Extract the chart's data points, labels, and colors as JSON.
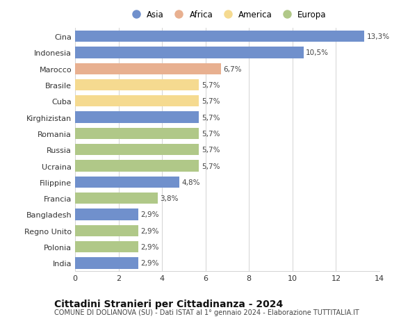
{
  "countries": [
    "Cina",
    "Indonesia",
    "Marocco",
    "Brasile",
    "Cuba",
    "Kirghizistan",
    "Romania",
    "Russia",
    "Ucraina",
    "Filippine",
    "Francia",
    "Bangladesh",
    "Regno Unito",
    "Polonia",
    "India"
  ],
  "values": [
    13.3,
    10.5,
    6.7,
    5.7,
    5.7,
    5.7,
    5.7,
    5.7,
    5.7,
    4.8,
    3.8,
    2.9,
    2.9,
    2.9,
    2.9
  ],
  "labels": [
    "13,3%",
    "10,5%",
    "6,7%",
    "5,7%",
    "5,7%",
    "5,7%",
    "5,7%",
    "5,7%",
    "5,7%",
    "4,8%",
    "3,8%",
    "2,9%",
    "2,9%",
    "2,9%",
    "2,9%"
  ],
  "continents": [
    "Asia",
    "Asia",
    "Africa",
    "America",
    "America",
    "Asia",
    "Europa",
    "Europa",
    "Europa",
    "Asia",
    "Europa",
    "Asia",
    "Europa",
    "Europa",
    "Asia"
  ],
  "colors": {
    "Asia": "#7090cc",
    "Africa": "#e8b090",
    "America": "#f5da90",
    "Europa": "#b0c888"
  },
  "legend_order": [
    "Asia",
    "Africa",
    "America",
    "Europa"
  ],
  "xlim": [
    0,
    14
  ],
  "xticks": [
    0,
    2,
    4,
    6,
    8,
    10,
    12,
    14
  ],
  "title": "Cittadini Stranieri per Cittadinanza - 2024",
  "subtitle": "COMUNE DI DOLIANOVA (SU) - Dati ISTAT al 1° gennaio 2024 - Elaborazione TUTTITALIA.IT",
  "bg_color": "#ffffff",
  "grid_color": "#cccccc",
  "bar_height": 0.7,
  "label_fontsize": 7.5,
  "ytick_fontsize": 8,
  "xtick_fontsize": 8,
  "title_fontsize": 10,
  "subtitle_fontsize": 7
}
